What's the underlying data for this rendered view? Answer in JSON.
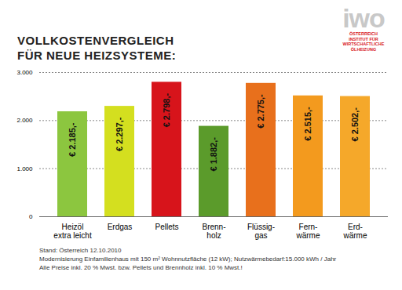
{
  "chart_data": {
    "type": "bar",
    "title": "VOLLKOSTENVERGLEICH\nFÜR NEUE HEIZSYSTEME:",
    "logo": {
      "name": "iwo",
      "lines": [
        "ÖSTERREICH",
        "INSTITUT FÜR",
        "WIRTSCHAFTLICHE",
        "ÖLHEIZUNG"
      ]
    },
    "categories": [
      "Heizöl\nextra leicht",
      "Erdgas",
      "Pellets",
      "Brenn-\nholz",
      "Flüssig-\ngas",
      "Fern-\nwärme",
      "Erd-\nwärme"
    ],
    "values": [
      2185,
      2297,
      2798,
      1882,
      2775,
      2515,
      2502
    ],
    "value_labels": [
      "€ 2.185,-",
      "€ 2.297,-",
      "€ 2.798,-",
      "€ 1.882,-",
      "€ 2.775,-",
      "€ 2.515,-",
      "€ 2.502,-"
    ],
    "colors": [
      "#8cc63f",
      "#d4df1f",
      "#d7141b",
      "#5b9b2b",
      "#e8701c",
      "#f39a1e",
      "#f5a82a"
    ],
    "ylim": [
      0,
      3000
    ],
    "yticks": [
      0,
      {
        "value": 1000,
        "label": "1.000"
      },
      {
        "value": 2000,
        "label": "2.000"
      },
      {
        "value": 3000,
        "label": "3.000"
      }
    ],
    "grid": true,
    "data_labels": true,
    "footnotes": [
      "Stand: Österreich  12.10.2010",
      "Modernisierung Einfamilienhaus mit 150 m² Wohnnutzfläche (12 kW); Nutzwärmebedarf:15.000 kWh / Jahr",
      "Alle Preise inkl. 20 % Mwst. bzw. Pellets und Brennholz inkl. 10 % Mwst.!"
    ]
  }
}
